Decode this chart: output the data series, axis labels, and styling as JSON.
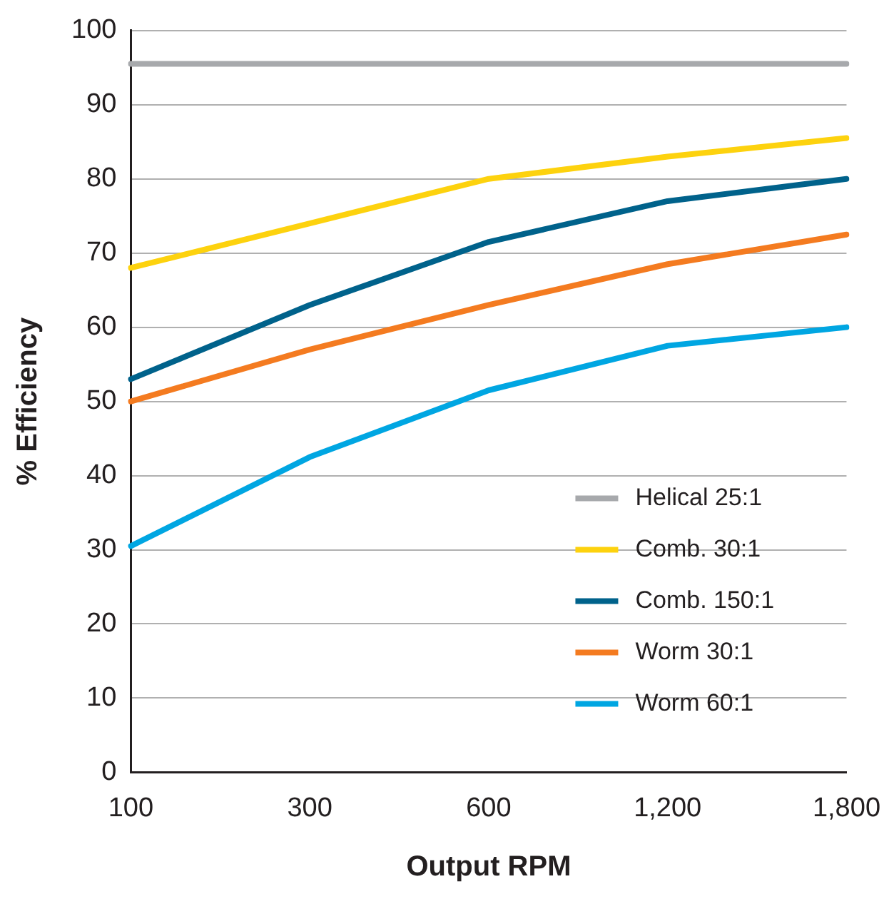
{
  "chart_data": {
    "type": "line",
    "xlabel": "Output RPM",
    "ylabel": "% Efficiency",
    "categories": [
      "100",
      "300",
      "600",
      "1,200",
      "1,800"
    ],
    "series": [
      {
        "name": "Helical 25:1",
        "color": "#a7a9ac",
        "values": [
          95.5,
          95.5,
          95.5,
          95.5,
          95.5
        ]
      },
      {
        "name": "Comb. 30:1",
        "color": "#fdd20e",
        "values": [
          68,
          74,
          80,
          83,
          85.5
        ]
      },
      {
        "name": "Comb. 150:1",
        "color": "#00628b",
        "values": [
          53,
          63,
          71.5,
          77,
          80
        ]
      },
      {
        "name": "Worm 30:1",
        "color": "#f47b20",
        "values": [
          50,
          57,
          63,
          68.5,
          72.5
        ]
      },
      {
        "name": "Worm 60:1",
        "color": "#00a6e2",
        "values": [
          30.5,
          42.5,
          51.5,
          57.5,
          60
        ]
      }
    ],
    "ylim": [
      0,
      100
    ],
    "yticks": [
      0,
      10,
      20,
      30,
      40,
      50,
      60,
      70,
      80,
      90,
      100
    ],
    "grid": "y",
    "legend": "bottom right",
    "marker": "none",
    "line_style": "solid"
  }
}
